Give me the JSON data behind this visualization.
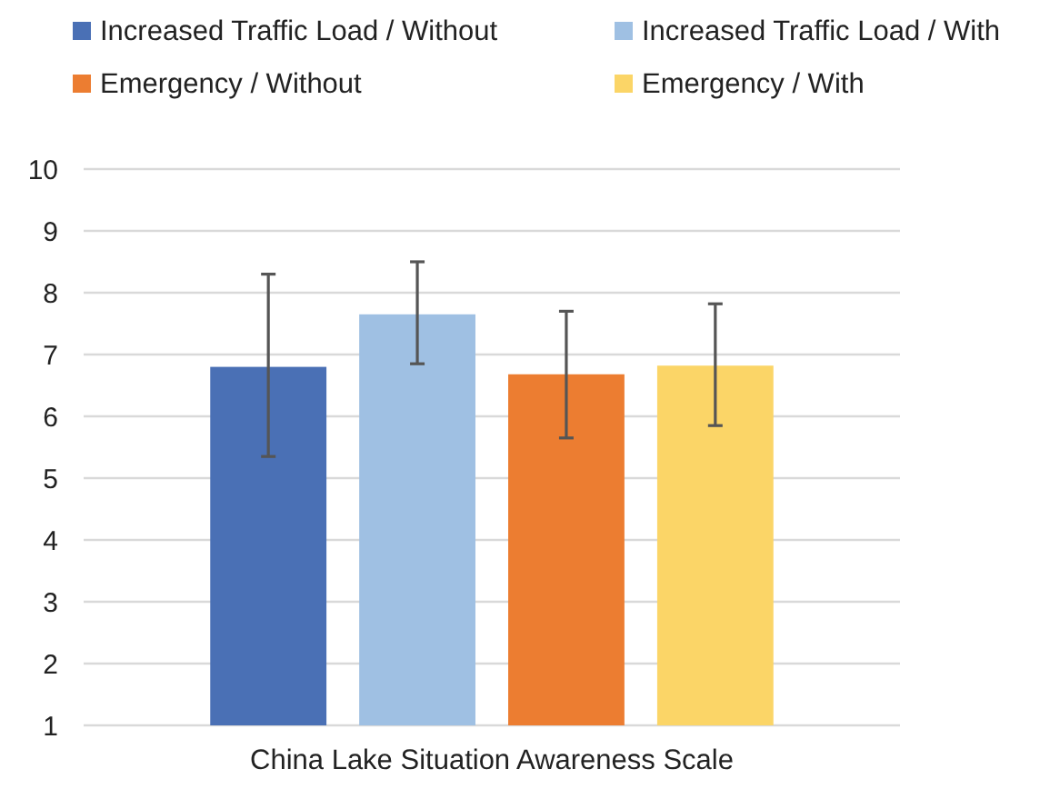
{
  "chart_data": {
    "type": "bar",
    "categories": [
      "China Lake Situation Awareness Scale"
    ],
    "series": [
      {
        "name": "Increased Traffic Load / Without",
        "color": "#4a70b5",
        "values": [
          6.8
        ],
        "errors": [
          [
            5.35,
            8.3
          ]
        ]
      },
      {
        "name": "Increased Traffic Load / With",
        "color": "#9fc0e3",
        "values": [
          7.65
        ],
        "errors": [
          [
            6.85,
            8.5
          ]
        ]
      },
      {
        "name": "Emergency / Without",
        "color": "#ec7d31",
        "values": [
          6.68
        ],
        "errors": [
          [
            5.65,
            7.7
          ]
        ]
      },
      {
        "name": "Emergency / With",
        "color": "#fbd567",
        "values": [
          6.82
        ],
        "errors": [
          [
            5.85,
            7.82
          ]
        ]
      }
    ],
    "ylim": [
      1,
      10
    ],
    "yticks": [
      1,
      2,
      3,
      4,
      5,
      6,
      7,
      8,
      9,
      10
    ],
    "grid": "y",
    "legend": "top"
  }
}
